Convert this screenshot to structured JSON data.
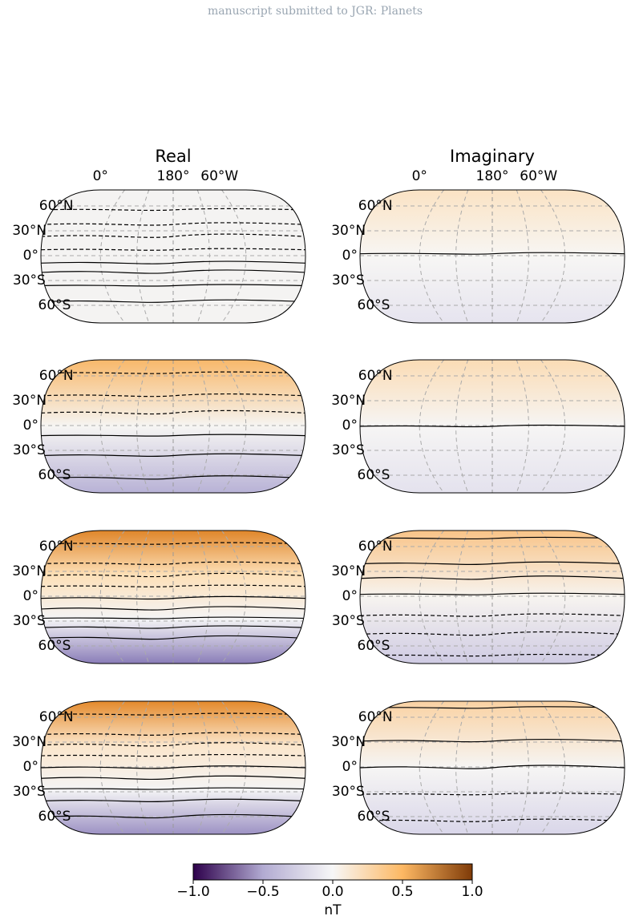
{
  "header": "manuscript submitted to JGR: Planets",
  "columns": [
    "Real",
    "Imaginary"
  ],
  "lon_labels": [
    "0°",
    "180°",
    "60°W"
  ],
  "lat_labels": [
    "60°N",
    "30°N",
    "0°",
    "30°S",
    "60°S"
  ],
  "colorbar": {
    "lim": [
      -1.0,
      1.0
    ],
    "ticks": [
      {
        "value": -1.0,
        "label": "−1.0"
      },
      {
        "value": -0.5,
        "label": "−0.5"
      },
      {
        "value": 0.0,
        "label": "0.0"
      },
      {
        "value": 0.5,
        "label": "0.5"
      },
      {
        "value": 1.0,
        "label": "1.0"
      }
    ],
    "label": "nT"
  }
}
